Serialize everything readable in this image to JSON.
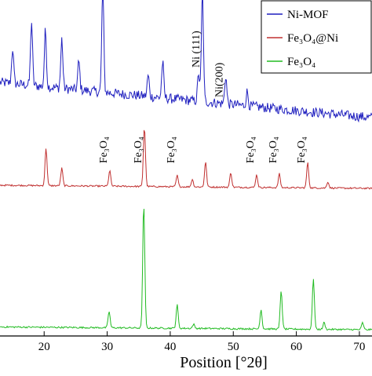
{
  "chart_data": {
    "type": "line",
    "xlabel": "Position [°2θ]",
    "ylabel": "",
    "xlim": [
      13,
      72
    ],
    "x_ticks": [
      20,
      30,
      40,
      50,
      60,
      70
    ],
    "y_ticks_shown": false,
    "grid": false,
    "legend_position": "top-right",
    "series": [
      {
        "name": "Ni-MOF",
        "color": "#1f1fbf",
        "peaks": [
          [
            15.0,
            0.25
          ],
          [
            18.0,
            0.45
          ],
          [
            20.2,
            0.4
          ],
          [
            22.8,
            0.35
          ],
          [
            25.5,
            0.2
          ],
          [
            29.3,
            0.75
          ],
          [
            36.5,
            0.15
          ],
          [
            38.8,
            0.25
          ],
          [
            44.5,
            0.2
          ],
          [
            45.1,
            0.78
          ],
          [
            48.8,
            0.2
          ],
          [
            52.2,
            0.1
          ]
        ],
        "baseline_slope": 0.25,
        "noise": 0.07
      },
      {
        "name": "Fe₃O₄@Ni",
        "color": "#c03030",
        "peaks": [
          [
            20.3,
            0.6
          ],
          [
            22.8,
            0.28
          ],
          [
            30.4,
            0.25
          ],
          [
            35.9,
            0.95
          ],
          [
            41.1,
            0.18
          ],
          [
            43.5,
            0.12
          ],
          [
            45.6,
            0.4
          ],
          [
            49.6,
            0.23
          ],
          [
            53.7,
            0.2
          ],
          [
            57.3,
            0.22
          ],
          [
            61.8,
            0.4
          ],
          [
            65.0,
            0.1
          ]
        ],
        "baseline_slope": 0.05,
        "noise": 0.025
      },
      {
        "name": "Fe₃O₄",
        "color": "#22bb22",
        "peaks": [
          [
            30.3,
            0.12
          ],
          [
            35.8,
            0.9
          ],
          [
            41.1,
            0.17
          ],
          [
            43.7,
            0.03
          ],
          [
            54.4,
            0.14
          ],
          [
            57.6,
            0.28
          ],
          [
            62.7,
            0.37
          ],
          [
            64.4,
            0.05
          ],
          [
            70.5,
            0.05
          ]
        ],
        "baseline_slope": 0.02,
        "noise": 0.012
      }
    ],
    "annotations": [
      {
        "text": "Ni (111)",
        "x": 45.1,
        "series": "Ni-MOF"
      },
      {
        "text": "Ni(200)",
        "x": 48.8,
        "series": "Ni-MOF"
      },
      {
        "text": "Fe₃O₄",
        "x": 30.4,
        "series": "Fe₃O₄@Ni"
      },
      {
        "text": "Fe₃O₄",
        "x": 35.9,
        "series": "Fe₃O₄@Ni"
      },
      {
        "text": "Fe₃O₄",
        "x": 41.1,
        "series": "Fe₃O₄@Ni"
      },
      {
        "text": "Fe₃O₄",
        "x": 53.7,
        "series": "Fe₃O₄@Ni"
      },
      {
        "text": "Fe₃O₄",
        "x": 57.3,
        "series": "Fe₃O₄@Ni"
      },
      {
        "text": "Fe₃O₄",
        "x": 61.8,
        "series": "Fe₃O₄@Ni"
      }
    ]
  }
}
